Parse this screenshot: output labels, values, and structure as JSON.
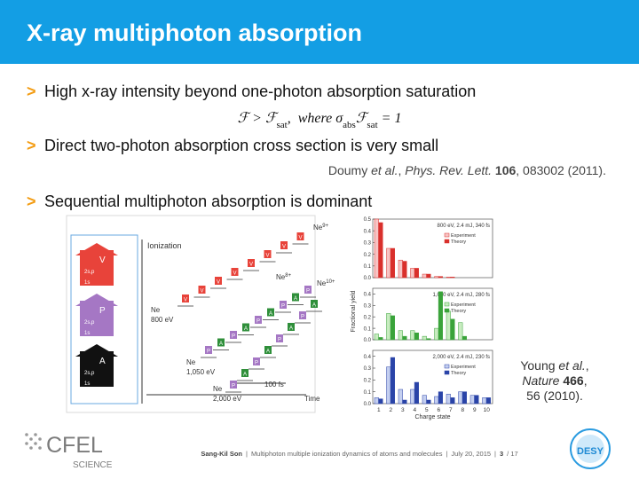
{
  "header": {
    "title": "X-ray multiphoton absorption"
  },
  "bullet_marker": ">",
  "bullets": [
    "High x-ray intensity beyond one-photon absorption saturation",
    "Direct two-photon absorption cross section is very small",
    "Sequential multiphoton absorption is dominant"
  ],
  "formula": [
    "ℱ > ℱ",
    "sat",
    ",  where σ",
    "abs",
    "ℱ",
    "sat",
    " = 1"
  ],
  "citation1": [
    {
      "text": "Doumy ",
      "style": "normal"
    },
    {
      "text": "et al.",
      "style": "italic"
    },
    {
      "text": ", ",
      "style": "normal"
    },
    {
      "text": "Phys. Rev. Lett.",
      "style": "italic"
    },
    {
      "text": " ",
      "style": "normal"
    },
    {
      "text": "106",
      "style": "bold"
    },
    {
      "text": ", 083002 (2011).",
      "style": "normal"
    }
  ],
  "figure": {
    "ionization": "Ionization",
    "time": "Time",
    "duration": "100 fs",
    "ions": [
      {
        "base": "Ne",
        "sup": "9+"
      },
      {
        "base": "Ne",
        "sup": "8+"
      },
      {
        "base": "Ne",
        "sup": "10+"
      }
    ],
    "starts": [
      {
        "ion": "Ne",
        "energy": "800 eV"
      },
      {
        "ion": "Ne",
        "energy": "1,050 eV"
      },
      {
        "ion": "Ne",
        "energy": "2,000 eV"
      }
    ],
    "legend_boxes": [
      {
        "letter": "V",
        "upper": "2s,p",
        "lower": "1s"
      },
      {
        "letter": "P",
        "upper": "2s,p",
        "lower": "1s"
      },
      {
        "letter": "A",
        "upper": "2s,p",
        "lower": "1s"
      }
    ],
    "steps": [
      [
        "V",
        "V",
        "V",
        "V",
        "V",
        "V",
        "V",
        "V"
      ],
      [
        "P",
        "A",
        "P",
        "A",
        "P",
        "A",
        "P",
        "A",
        "P"
      ],
      [
        "P",
        "A",
        "P",
        "A",
        "P",
        "A",
        "P",
        "A"
      ]
    ]
  },
  "chart": {
    "type": "bar",
    "ylabel": "Fractional yield",
    "xlabel": "Charge state",
    "categories": [
      1,
      2,
      3,
      4,
      5,
      6,
      7,
      8,
      9,
      10
    ],
    "panels": [
      {
        "title": "800 eV, 2.4 mJ, 340 fs",
        "ylim": [
          0,
          0.5
        ],
        "yticks": [
          {
            "value": 0,
            "label": "0.0"
          },
          0.1,
          0.2,
          0.3,
          0.4,
          0.5
        ],
        "series": [
          {
            "name": "Experiment",
            "color": "#f7c4c4",
            "edge": "#d9302c",
            "values": [
              0.5,
              0.25,
              0.15,
              0.08,
              0.03,
              0.01,
              0.005,
              0,
              0,
              0
            ]
          },
          {
            "name": "Theory",
            "color": "#d9302c",
            "edge": "#d9302c",
            "values": [
              0.47,
              0.25,
              0.14,
              0.08,
              0.03,
              0.01,
              0.005,
              0,
              0,
              0
            ]
          }
        ]
      },
      {
        "title": "1,050 eV, 2.4 mJ, 280 fs",
        "ylim": [
          0,
          0.45
        ],
        "yticks": [
          {
            "value": 0,
            "label": "0.0"
          },
          0.1,
          0.2,
          0.3,
          0.4
        ],
        "series": [
          {
            "name": "Experiment",
            "color": "#c8ecc0",
            "edge": "#3aa33a",
            "values": [
              0.05,
              0.23,
              0.08,
              0.08,
              0.03,
              0.1,
              0.25,
              0.15,
              0,
              0
            ]
          },
          {
            "name": "Theory",
            "color": "#3aa33a",
            "edge": "#3aa33a",
            "values": [
              0.02,
              0.21,
              0.03,
              0.06,
              0.01,
              0.42,
              0.18,
              0.03,
              0,
              0
            ]
          }
        ]
      },
      {
        "title": "2,000 eV, 2.4 mJ, 230 fs",
        "ylim": [
          0,
          0.45
        ],
        "yticks": [
          {
            "value": 0,
            "label": "0.0"
          },
          0.1,
          0.2,
          0.3,
          0.4
        ],
        "series": [
          {
            "name": "Experiment",
            "color": "#c4cff0",
            "edge": "#2a44a8",
            "values": [
              0.05,
              0.31,
              0.12,
              0.12,
              0.07,
              0.06,
              0.08,
              0.1,
              0.07,
              0.05
            ]
          },
          {
            "name": "Theory",
            "color": "#2a44a8",
            "edge": "#2a44a8",
            "values": [
              0.04,
              0.39,
              0.03,
              0.18,
              0.03,
              0.1,
              0.05,
              0.1,
              0.07,
              0.05
            ]
          }
        ]
      }
    ]
  },
  "citation2": [
    [
      {
        "text": "Young ",
        "style": "normal"
      },
      {
        "text": "et al.",
        "style": "italic"
      },
      {
        "text": ",",
        "style": "normal"
      }
    ],
    [
      {
        "text": "Nature",
        "style": "italic"
      },
      {
        "text": " ",
        "style": "normal"
      },
      {
        "text": "466",
        "style": "bold"
      },
      {
        "text": ",",
        "style": "normal"
      }
    ],
    [
      {
        "text": "56 (2010).",
        "style": "normal"
      }
    ]
  ],
  "footer": {
    "author": "Sang-Kil Son",
    "separator": "|",
    "talk": "Multiphoton multiple ionization dynamics of atoms and molecules",
    "date": "July 20, 2015",
    "page": "3",
    "total": "/ 17"
  },
  "logos": {
    "cfel": "CFEL",
    "cfel_sub": "SCIENCE",
    "desy": "DESY"
  }
}
